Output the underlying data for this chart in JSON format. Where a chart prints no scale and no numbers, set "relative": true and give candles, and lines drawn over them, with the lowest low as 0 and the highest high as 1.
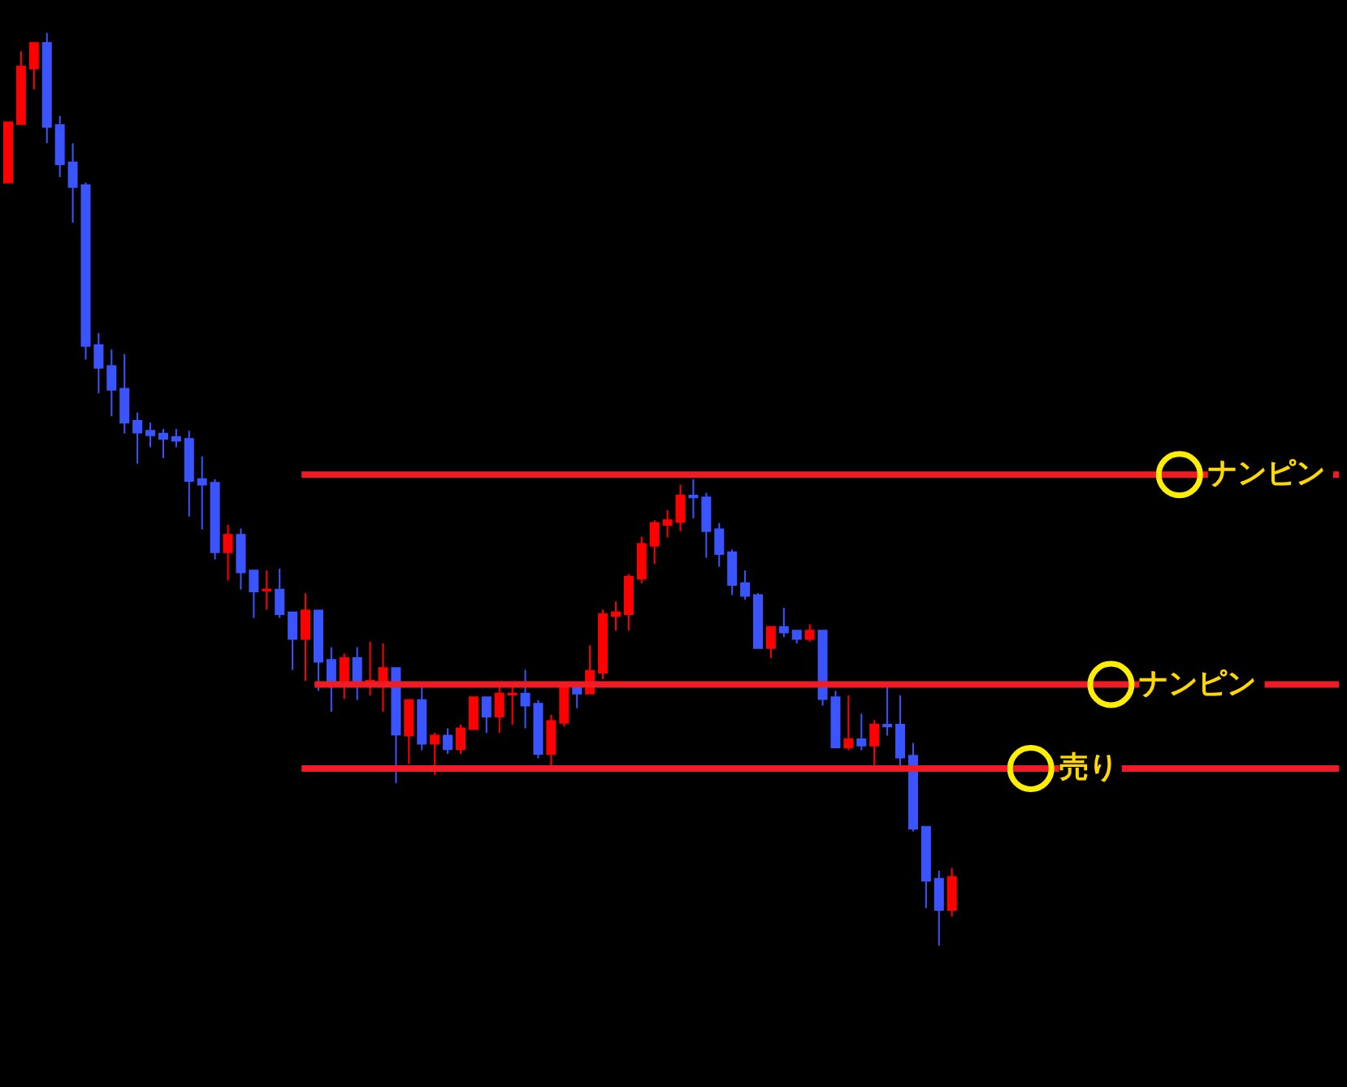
{
  "chart_data": {
    "type": "candlestick",
    "relative": true,
    "categories": [
      null,
      null,
      null,
      null,
      null,
      null,
      null,
      null,
      null,
      null,
      null,
      null,
      null,
      null,
      null,
      null,
      null,
      null,
      null,
      null,
      null,
      null,
      null,
      null,
      null,
      null,
      null,
      null,
      null,
      null,
      null,
      null,
      null,
      null,
      null,
      null,
      null,
      null,
      null,
      null,
      null,
      null,
      null,
      null,
      null,
      null,
      null,
      null,
      null,
      null,
      null,
      null,
      null,
      null,
      null,
      null,
      null,
      null,
      null,
      null,
      null,
      null,
      null,
      null,
      null,
      null,
      null,
      null,
      null,
      null,
      null,
      null,
      null,
      null
    ],
    "ohlc": [
      [
        0.836,
        0.902,
        0.836,
        0.902
      ],
      [
        0.9,
        0.98,
        0.9,
        0.963
      ],
      [
        0.961,
        0.989,
        0.938,
        0.989
      ],
      [
        0.989,
        1.0,
        0.879,
        0.897
      ],
      [
        0.899,
        0.909,
        0.842,
        0.856
      ],
      [
        0.858,
        0.879,
        0.792,
        0.831
      ],
      [
        0.833,
        0.836,
        0.642,
        0.657
      ],
      [
        0.658,
        0.671,
        0.605,
        0.633
      ],
      [
        0.635,
        0.653,
        0.58,
        0.609
      ],
      [
        0.61,
        0.648,
        0.561,
        0.573
      ],
      [
        0.575,
        0.584,
        0.528,
        0.562
      ],
      [
        0.564,
        0.573,
        0.546,
        0.559
      ],
      [
        0.561,
        0.566,
        0.534,
        0.555
      ],
      [
        0.557,
        0.566,
        0.546,
        0.553
      ],
      [
        0.555,
        0.564,
        0.47,
        0.509
      ],
      [
        0.511,
        0.536,
        0.456,
        0.505
      ],
      [
        0.507,
        0.511,
        0.423,
        0.431
      ],
      [
        0.431,
        0.461,
        0.4,
        0.45
      ],
      [
        0.45,
        0.457,
        0.39,
        0.409
      ],
      [
        0.411,
        0.411,
        0.359,
        0.388
      ],
      [
        0.389,
        0.411,
        0.368,
        0.39
      ],
      [
        0.39,
        0.413,
        0.359,
        0.363
      ],
      [
        0.365,
        0.365,
        0.302,
        0.336
      ],
      [
        0.336,
        0.386,
        0.29,
        0.367
      ],
      [
        0.367,
        0.368,
        0.279,
        0.311
      ],
      [
        0.313,
        0.327,
        0.256,
        0.29
      ],
      [
        0.288,
        0.32,
        0.27,
        0.315
      ],
      [
        0.315,
        0.327,
        0.269,
        0.288
      ],
      [
        0.286,
        0.333,
        0.274,
        0.29
      ],
      [
        0.286,
        0.331,
        0.256,
        0.304
      ],
      [
        0.304,
        0.304,
        0.178,
        0.231
      ],
      [
        0.23,
        0.269,
        0.199,
        0.269
      ],
      [
        0.269,
        0.283,
        0.214,
        0.221
      ],
      [
        0.221,
        0.233,
        0.187,
        0.23
      ],
      [
        0.23,
        0.238,
        0.21,
        0.215
      ],
      [
        0.215,
        0.242,
        0.21,
        0.238
      ],
      [
        0.237,
        0.272,
        0.237,
        0.272
      ],
      [
        0.272,
        0.272,
        0.233,
        0.251
      ],
      [
        0.251,
        0.283,
        0.233,
        0.276
      ],
      [
        0.275,
        0.283,
        0.242,
        0.276
      ],
      [
        0.276,
        0.302,
        0.238,
        0.263
      ],
      [
        0.265,
        0.269,
        0.205,
        0.21
      ],
      [
        0.21,
        0.253,
        0.196,
        0.246
      ],
      [
        0.244,
        0.286,
        0.24,
        0.285
      ],
      [
        0.283,
        0.283,
        0.26,
        0.276
      ],
      [
        0.276,
        0.329,
        0.276,
        0.301
      ],
      [
        0.299,
        0.368,
        0.292,
        0.363
      ],
      [
        0.361,
        0.377,
        0.345,
        0.365
      ],
      [
        0.363,
        0.407,
        0.345,
        0.404
      ],
      [
        0.402,
        0.448,
        0.397,
        0.44
      ],
      [
        0.438,
        0.466,
        0.418,
        0.463
      ],
      [
        0.461,
        0.477,
        0.447,
        0.466
      ],
      [
        0.464,
        0.505,
        0.454,
        0.493
      ],
      [
        0.493,
        0.511,
        0.468,
        0.491
      ],
      [
        0.491,
        0.496,
        0.425,
        0.454
      ],
      [
        0.456,
        0.463,
        0.415,
        0.429
      ],
      [
        0.431,
        0.434,
        0.384,
        0.395
      ],
      [
        0.397,
        0.411,
        0.379,
        0.383
      ],
      [
        0.384,
        0.386,
        0.326,
        0.326
      ],
      [
        0.326,
        0.349,
        0.315,
        0.349
      ],
      [
        0.349,
        0.37,
        0.338,
        0.343
      ],
      [
        0.345,
        0.345,
        0.331,
        0.336
      ],
      [
        0.336,
        0.352,
        0.333,
        0.345
      ],
      [
        0.345,
        0.345,
        0.263,
        0.27
      ],
      [
        0.272,
        0.279,
        0.217,
        0.217
      ],
      [
        0.217,
        0.274,
        0.214,
        0.226
      ],
      [
        0.226,
        0.254,
        0.214,
        0.219
      ],
      [
        0.219,
        0.247,
        0.196,
        0.242
      ],
      [
        0.242,
        0.283,
        0.23,
        0.24
      ],
      [
        0.242,
        0.274,
        0.196,
        0.206
      ],
      [
        0.208,
        0.222,
        0.125,
        0.128
      ],
      [
        0.13,
        0.13,
        0.041,
        0.071
      ],
      [
        0.073,
        0.082,
        0,
        0.039
      ],
      [
        0.039,
        0.085,
        0.032,
        0.075
      ]
    ],
    "colors": [
      "#ff0000",
      "#ff0000",
      "#ff0000",
      "#3a55ff",
      "#3a55ff",
      "#3a55ff",
      "#3a55ff",
      "#3a55ff",
      "#3a55ff",
      "#3a55ff",
      "#3a55ff",
      "#3a55ff",
      "#3a55ff",
      "#3a55ff",
      "#3a55ff",
      "#3a55ff",
      "#3a55ff",
      "#ff0000",
      "#3a55ff",
      "#3a55ff",
      "#ff0000",
      "#3a55ff",
      "#3a55ff",
      "#ff0000",
      "#3a55ff",
      "#3a55ff",
      "#ff0000",
      "#3a55ff",
      "#ff0000",
      "#ff0000",
      "#3a55ff",
      "#ff0000",
      "#3a55ff",
      "#ff0000",
      "#3a55ff",
      "#ff0000",
      "#ff0000",
      "#3a55ff",
      "#ff0000",
      "#ff0000",
      "#3a55ff",
      "#3a55ff",
      "#ff0000",
      "#ff0000",
      "#3a55ff",
      "#ff0000",
      "#ff0000",
      "#ff0000",
      "#ff0000",
      "#ff0000",
      "#ff0000",
      "#ff0000",
      "#ff0000",
      "#3a55ff",
      "#3a55ff",
      "#3a55ff",
      "#3a55ff",
      "#3a55ff",
      "#3a55ff",
      "#ff0000",
      "#3a55ff",
      "#3a55ff",
      "#ff0000",
      "#3a55ff",
      "#3a55ff",
      "#ff0000",
      "#3a55ff",
      "#ff0000",
      "#3a55ff",
      "#3a55ff",
      "#3a55ff",
      "#3a55ff",
      "#3a55ff",
      "#ff0000"
    ],
    "ref_lines": [
      {
        "axis": "y",
        "value": 0.516,
        "label": "ナンピン",
        "color": "#ee1c25"
      },
      {
        "axis": "y",
        "value": 0.286,
        "label": "ナンピン",
        "color": "#ee1c25"
      },
      {
        "axis": "y",
        "value": 0.194,
        "label": "売り",
        "color": "#ee1c25"
      }
    ]
  }
}
